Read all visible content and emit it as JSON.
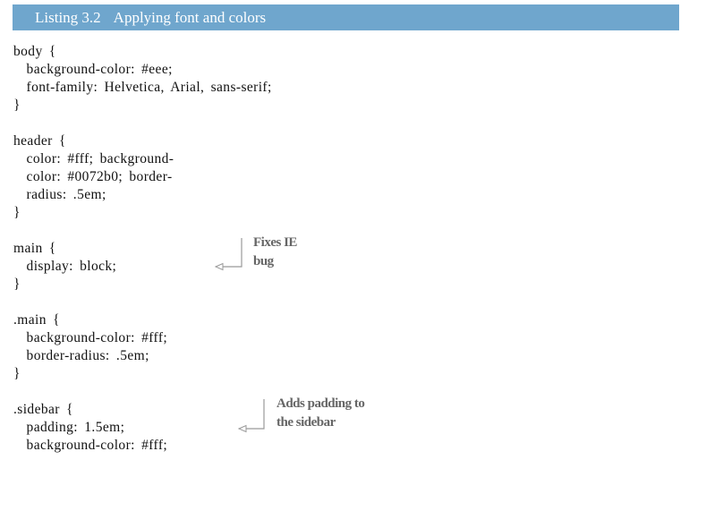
{
  "listing": {
    "number": "Listing 3.2",
    "title": "Applying font and colors"
  },
  "code_lines": [
    "body {",
    "  background-color: #eee;",
    "  font-family: Helvetica, Arial, sans-serif;",
    "}",
    "",
    "header {",
    "  color: #fff; background-",
    "  color: #0072b0; border-",
    "  radius: .5em;",
    "}",
    "",
    "main {",
    "  display: block;",
    "}",
    "",
    ".main {",
    "  background-color: #fff;",
    "  border-radius: .5em;",
    "}",
    "",
    ".sidebar {",
    "  padding: 1.5em;",
    "  background-color: #fff;"
  ],
  "annotations": [
    {
      "line1": "Fixes IE",
      "line2": "bug"
    },
    {
      "line1": "Adds padding to",
      "line2": "the sidebar"
    }
  ],
  "colors": {
    "header_bg": "#6fa6cd",
    "annotation_text": "#666666",
    "callout_line": "#999999"
  }
}
